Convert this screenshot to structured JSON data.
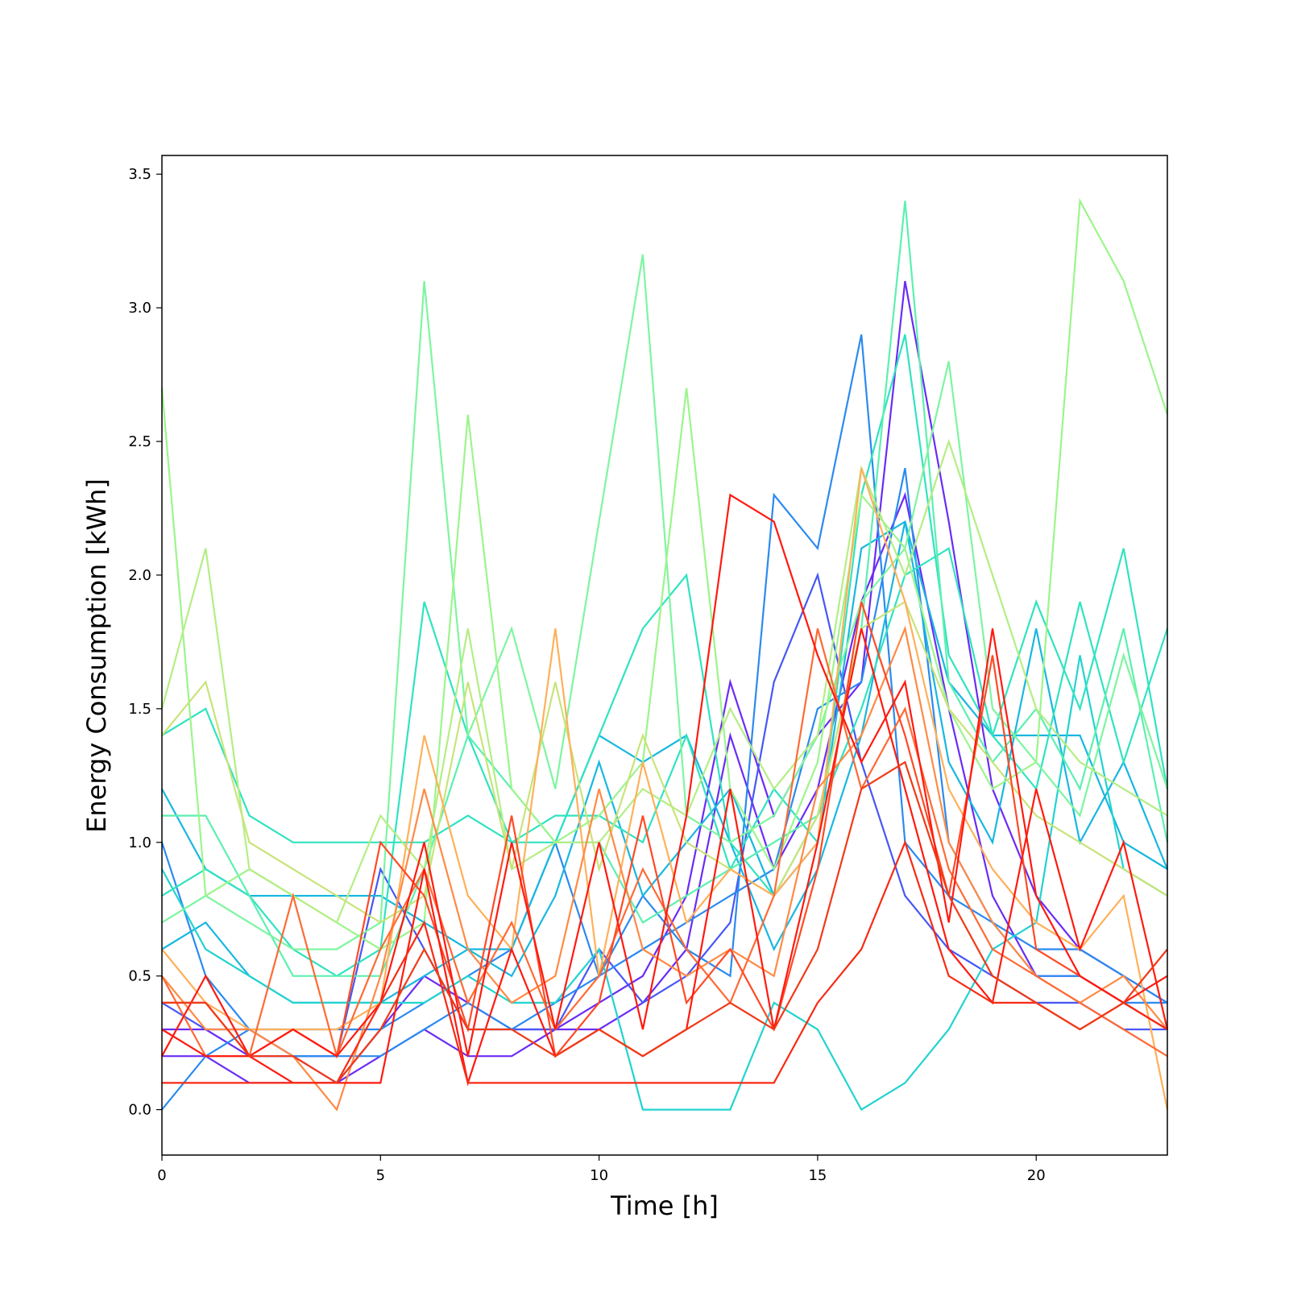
{
  "chart_data": {
    "type": "line",
    "title": "",
    "xlabel": "Time [h]",
    "ylabel": "Energy Consumption [kWh]",
    "xlim": [
      0,
      23
    ],
    "ylim": [
      -0.17,
      3.57
    ],
    "xticks": [
      0,
      5,
      10,
      15,
      20
    ],
    "yticks": [
      0.0,
      0.5,
      1.0,
      1.5,
      2.0,
      2.5,
      3.0,
      3.5
    ],
    "xtick_labels": [
      "0",
      "5",
      "10",
      "15",
      "20"
    ],
    "ytick_labels": [
      "0.0",
      "0.5",
      "1.0",
      "1.5",
      "2.0",
      "2.5",
      "3.0",
      "3.5"
    ],
    "grid": false,
    "legend": "none",
    "colormap": "rainbow",
    "x": [
      0,
      1,
      2,
      3,
      4,
      5,
      6,
      7,
      8,
      9,
      10,
      11,
      12,
      13,
      14,
      15,
      16,
      17,
      18,
      19,
      20,
      21,
      22,
      23
    ],
    "series": [
      {
        "color": "#6a2cf5",
        "values": [
          0.3,
          0.3,
          0.2,
          0.2,
          0.1,
          0.3,
          0.5,
          0.4,
          0.3,
          0.3,
          0.4,
          0.5,
          0.8,
          1.6,
          1.1,
          1.4,
          1.6,
          3.1,
          2.2,
          1.2,
          0.8,
          0.6,
          0.5,
          0.4
        ]
      },
      {
        "color": "#6a2cf5",
        "values": [
          0.2,
          0.2,
          0.1,
          0.1,
          0.1,
          0.2,
          0.3,
          0.2,
          0.2,
          0.3,
          0.3,
          0.4,
          0.6,
          1.4,
          0.9,
          1.2,
          1.9,
          2.3,
          1.5,
          0.8,
          0.5,
          0.5,
          0.4,
          0.3
        ]
      },
      {
        "color": "#4657f5",
        "values": [
          0.4,
          0.3,
          0.3,
          0.2,
          0.2,
          0.9,
          0.6,
          0.3,
          0.3,
          0.3,
          0.6,
          0.4,
          0.5,
          0.7,
          1.6,
          2.0,
          1.3,
          0.8,
          0.6,
          0.5,
          0.4,
          0.4,
          0.3,
          0.3
        ]
      },
      {
        "color": "#2a8af0",
        "values": [
          1.0,
          0.5,
          0.3,
          0.3,
          0.3,
          0.3,
          0.4,
          0.5,
          0.6,
          1.0,
          0.5,
          0.8,
          0.6,
          0.5,
          2.3,
          2.1,
          2.9,
          1.0,
          0.8,
          0.7,
          0.6,
          0.6,
          0.5,
          0.4
        ]
      },
      {
        "color": "#2a8af0",
        "values": [
          0.0,
          0.2,
          0.3,
          0.2,
          0.2,
          0.2,
          0.3,
          0.4,
          0.3,
          0.4,
          0.5,
          0.6,
          0.7,
          0.8,
          0.9,
          1.5,
          1.6,
          2.4,
          1.0,
          0.7,
          0.5,
          0.5,
          0.4,
          0.4
        ]
      },
      {
        "color": "#18b7e0",
        "values": [
          1.2,
          0.9,
          0.8,
          0.8,
          0.8,
          0.8,
          0.7,
          0.6,
          0.6,
          1.0,
          1.4,
          1.3,
          1.4,
          1.0,
          0.6,
          0.9,
          1.4,
          2.2,
          1.6,
          1.4,
          1.4,
          1.4,
          1.0,
          0.9
        ]
      },
      {
        "color": "#18b7e0",
        "values": [
          0.6,
          0.7,
          0.5,
          0.4,
          0.4,
          0.4,
          0.5,
          0.6,
          0.5,
          0.8,
          1.3,
          0.8,
          1.0,
          1.2,
          0.8,
          1.0,
          2.1,
          2.2,
          1.3,
          1.0,
          1.8,
          1.0,
          1.3,
          0.9
        ]
      },
      {
        "color": "#22d3d0",
        "values": [
          0.9,
          0.6,
          0.5,
          0.4,
          0.4,
          0.4,
          0.4,
          0.5,
          0.4,
          0.4,
          0.6,
          0.0,
          0.0,
          0.0,
          0.4,
          0.3,
          0.0,
          0.1,
          0.3,
          0.6,
          0.7,
          1.7,
          0.9,
          0.8
        ]
      },
      {
        "color": "#30e3c0",
        "values": [
          1.4,
          1.5,
          1.1,
          1.0,
          1.0,
          1.0,
          1.0,
          1.1,
          1.0,
          1.0,
          1.4,
          1.8,
          2.0,
          1.0,
          0.8,
          1.1,
          1.5,
          2.0,
          2.1,
          1.4,
          1.2,
          1.9,
          1.3,
          1.8
        ]
      },
      {
        "color": "#30e3c0",
        "values": [
          0.8,
          0.9,
          0.8,
          0.6,
          0.5,
          0.6,
          1.9,
          1.4,
          1.0,
          1.1,
          1.1,
          1.0,
          1.4,
          0.9,
          1.2,
          1.0,
          2.3,
          2.9,
          1.7,
          1.4,
          1.9,
          1.5,
          2.1,
          1.2
        ]
      },
      {
        "color": "#5cf0b0",
        "values": [
          1.1,
          1.1,
          0.8,
          0.5,
          0.5,
          0.5,
          0.9,
          1.4,
          1.2,
          1.0,
          1.0,
          0.7,
          0.8,
          0.9,
          1.0,
          1.1,
          1.8,
          3.4,
          1.6,
          1.3,
          1.5,
          1.2,
          1.8,
          1.0
        ]
      },
      {
        "color": "#7ef5a0",
        "values": [
          0.7,
          0.8,
          0.7,
          0.6,
          0.6,
          0.7,
          3.1,
          1.4,
          1.8,
          1.2,
          2.2,
          3.2,
          1.1,
          1.0,
          1.1,
          1.4,
          1.9,
          2.1,
          2.8,
          1.5,
          1.3,
          1.1,
          1.7,
          1.2
        ]
      },
      {
        "color": "#9cf58c",
        "values": [
          2.7,
          0.8,
          0.9,
          0.8,
          0.7,
          0.6,
          0.7,
          2.6,
          1.2,
          1.0,
          1.1,
          1.3,
          2.7,
          1.2,
          0.9,
          1.3,
          2.3,
          2.1,
          1.5,
          1.2,
          1.3,
          3.4,
          3.1,
          2.6
        ]
      },
      {
        "color": "#b4ee84",
        "values": [
          1.5,
          2.1,
          0.9,
          0.8,
          0.7,
          1.1,
          0.9,
          1.8,
          0.9,
          1.0,
          1.0,
          1.2,
          1.1,
          1.5,
          1.2,
          1.4,
          2.4,
          2.0,
          2.5,
          2.0,
          1.5,
          1.3,
          1.2,
          1.1
        ]
      },
      {
        "color": "#c8e47a",
        "values": [
          1.4,
          1.6,
          1.0,
          0.9,
          0.8,
          0.7,
          0.8,
          1.6,
          0.9,
          1.6,
          0.9,
          1.4,
          1.0,
          0.9,
          0.8,
          1.1,
          1.8,
          1.9,
          1.5,
          1.3,
          1.1,
          1.0,
          0.9,
          0.8
        ]
      },
      {
        "color": "#ffb05a",
        "values": [
          0.6,
          0.4,
          0.3,
          0.3,
          0.3,
          0.4,
          1.4,
          0.8,
          0.6,
          1.8,
          0.5,
          1.3,
          0.7,
          0.9,
          0.8,
          1.0,
          2.4,
          1.9,
          1.2,
          0.9,
          0.7,
          0.6,
          0.8,
          0.0
        ]
      },
      {
        "color": "#ff8a45",
        "values": [
          0.5,
          0.3,
          0.3,
          0.2,
          0.0,
          0.5,
          1.2,
          0.6,
          0.4,
          0.5,
          1.2,
          0.6,
          0.5,
          0.6,
          0.5,
          1.2,
          1.4,
          1.8,
          1.0,
          0.7,
          0.5,
          0.4,
          0.5,
          0.3
        ]
      },
      {
        "color": "#ff6a35",
        "values": [
          0.5,
          0.2,
          0.2,
          0.8,
          0.2,
          0.6,
          0.9,
          0.4,
          0.7,
          0.3,
          0.5,
          0.9,
          0.6,
          0.4,
          0.8,
          1.8,
          1.2,
          1.5,
          0.9,
          0.6,
          0.5,
          0.4,
          0.3,
          0.2
        ]
      },
      {
        "color": "#ff4a25",
        "values": [
          0.4,
          0.4,
          0.2,
          0.3,
          0.2,
          1.0,
          0.8,
          0.3,
          1.1,
          0.2,
          0.4,
          1.1,
          0.4,
          0.6,
          0.3,
          0.9,
          1.9,
          1.4,
          0.8,
          1.7,
          0.6,
          0.5,
          0.4,
          0.3
        ]
      },
      {
        "color": "#ff1a10",
        "values": [
          0.3,
          0.2,
          0.2,
          0.3,
          0.2,
          0.4,
          1.0,
          0.2,
          1.0,
          0.3,
          1.0,
          0.3,
          1.1,
          2.3,
          2.2,
          1.7,
          1.3,
          1.6,
          0.7,
          1.8,
          0.8,
          0.5,
          0.4,
          0.5
        ]
      },
      {
        "color": "#ff1a10",
        "values": [
          0.2,
          0.5,
          0.2,
          0.1,
          0.1,
          0.1,
          0.9,
          0.1,
          0.6,
          0.2,
          0.3,
          0.2,
          0.3,
          1.2,
          0.3,
          1.0,
          1.8,
          1.2,
          0.6,
          0.4,
          1.2,
          0.6,
          1.0,
          0.3
        ]
      },
      {
        "color": "#f82a15",
        "values": [
          0.1,
          0.1,
          0.1,
          0.1,
          0.1,
          0.4,
          0.7,
          0.1,
          0.1,
          0.1,
          0.1,
          0.1,
          0.1,
          0.1,
          0.1,
          0.4,
          0.6,
          1.0,
          0.5,
          0.4,
          0.4,
          0.3,
          0.4,
          0.3
        ]
      },
      {
        "color": "#f03a18",
        "values": [
          0.4,
          0.4,
          0.2,
          0.2,
          0.1,
          0.3,
          0.6,
          0.3,
          0.3,
          0.2,
          0.3,
          0.2,
          0.3,
          0.4,
          0.3,
          0.6,
          1.2,
          1.3,
          0.8,
          0.5,
          0.4,
          0.3,
          0.4,
          0.6
        ]
      }
    ]
  }
}
